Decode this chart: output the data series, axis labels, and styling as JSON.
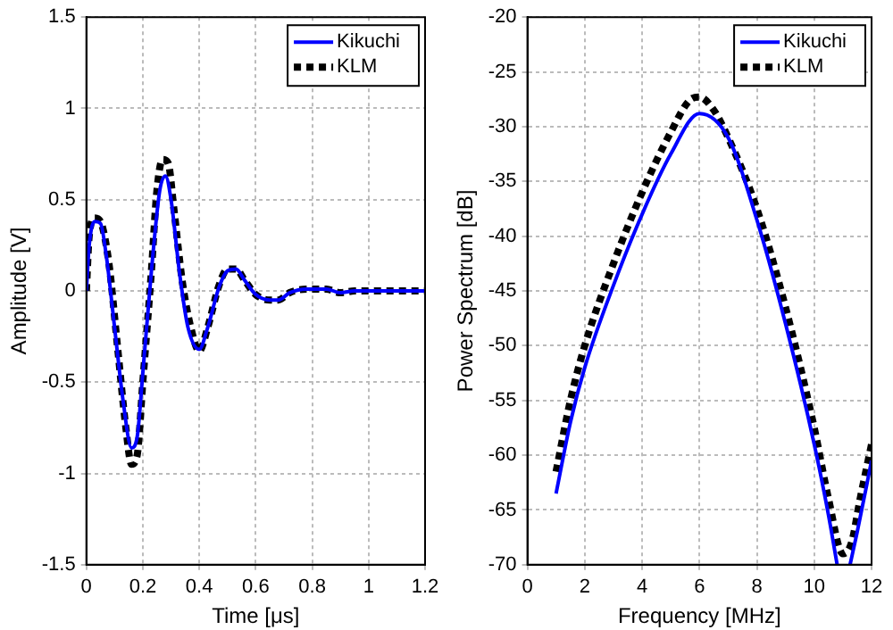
{
  "chart_data": [
    {
      "type": "line",
      "xlabel": "Time [μs]",
      "ylabel": "Amplitude [V]",
      "xlim": [
        0,
        1.2
      ],
      "xticks": [
        0,
        0.2,
        0.4,
        0.6,
        0.8,
        1,
        1.2
      ],
      "ylim": [
        -1.5,
        1.5
      ],
      "yticks": [
        -1.5,
        -1,
        -0.5,
        0,
        0.5,
        1,
        1.5
      ],
      "grid": true,
      "legend": "top right",
      "series": [
        {
          "name": "Kikuchi",
          "color": "#0000ff",
          "line_style": "solid",
          "x": [
            0,
            0.01,
            0.03,
            0.05,
            0.07,
            0.1,
            0.13,
            0.16,
            0.18,
            0.2,
            0.23,
            0.26,
            0.28,
            0.3,
            0.33,
            0.36,
            0.4,
            0.43,
            0.47,
            0.5,
            0.53,
            0.56,
            0.6,
            0.65,
            0.68,
            0.72,
            0.78,
            0.85,
            0.9,
            0.95,
            1.2
          ],
          "values": [
            0,
            0.25,
            0.38,
            0.37,
            0.2,
            -0.2,
            -0.6,
            -0.86,
            -0.8,
            -0.45,
            0.1,
            0.55,
            0.63,
            0.5,
            0.1,
            -0.2,
            -0.32,
            -0.2,
            0.02,
            0.11,
            0.12,
            0.06,
            -0.02,
            -0.05,
            -0.05,
            -0.01,
            0.01,
            0.01,
            -0.01,
            0,
            0
          ]
        },
        {
          "name": "KLM",
          "color": "#000000",
          "line_style": "dotted",
          "x": [
            0,
            0.01,
            0.03,
            0.05,
            0.08,
            0.11,
            0.14,
            0.16,
            0.18,
            0.2,
            0.23,
            0.25,
            0.27,
            0.29,
            0.31,
            0.34,
            0.37,
            0.4,
            0.43,
            0.47,
            0.5,
            0.53,
            0.56,
            0.6,
            0.65,
            0.68,
            0.72,
            0.78,
            0.85,
            0.9,
            0.95,
            1.2
          ],
          "values": [
            0,
            0.3,
            0.4,
            0.38,
            0.15,
            -0.3,
            -0.75,
            -0.95,
            -0.9,
            -0.5,
            0.1,
            0.55,
            0.72,
            0.7,
            0.45,
            0.05,
            -0.2,
            -0.33,
            -0.2,
            0.03,
            0.12,
            0.12,
            0.06,
            -0.02,
            -0.05,
            -0.05,
            -0.01,
            0.01,
            0.01,
            -0.01,
            0,
            0
          ]
        }
      ]
    },
    {
      "type": "line",
      "xlabel": "Frequency [MHz]",
      "ylabel": "Power Spectrum [dB]",
      "xlim": [
        0,
        12
      ],
      "xticks": [
        0,
        2,
        4,
        6,
        8,
        10,
        12
      ],
      "ylim": [
        -70,
        -20
      ],
      "yticks": [
        -70,
        -65,
        -60,
        -55,
        -50,
        -45,
        -40,
        -35,
        -30,
        -25,
        -20
      ],
      "grid": true,
      "legend": "top right",
      "series": [
        {
          "name": "Kikuchi",
          "color": "#0000ff",
          "line_style": "solid",
          "x": [
            1,
            1.5,
            2,
            3,
            4,
            5,
            6,
            7,
            8,
            9,
            10,
            10.5,
            10.8,
            11,
            11.25,
            11.5,
            12
          ],
          "values": [
            -63.5,
            -57,
            -52,
            -44.5,
            -38,
            -32.5,
            -28.8,
            -31,
            -38.5,
            -48,
            -59,
            -65.5,
            -70,
            null,
            -70,
            -67,
            -60.5
          ]
        },
        {
          "name": "KLM",
          "color": "#000000",
          "line_style": "dotted",
          "x": [
            1,
            1.5,
            2,
            3,
            4,
            5,
            5.7,
            6,
            6.5,
            7,
            8,
            9,
            10,
            10.5,
            11,
            11.3,
            11.6,
            12
          ],
          "values": [
            -61.5,
            -55,
            -50,
            -42.5,
            -36,
            -30.5,
            -27.5,
            -27.3,
            -28.5,
            -31,
            -37.5,
            -46.5,
            -57.5,
            -64,
            -69,
            -68,
            -64,
            -59
          ]
        }
      ]
    }
  ]
}
